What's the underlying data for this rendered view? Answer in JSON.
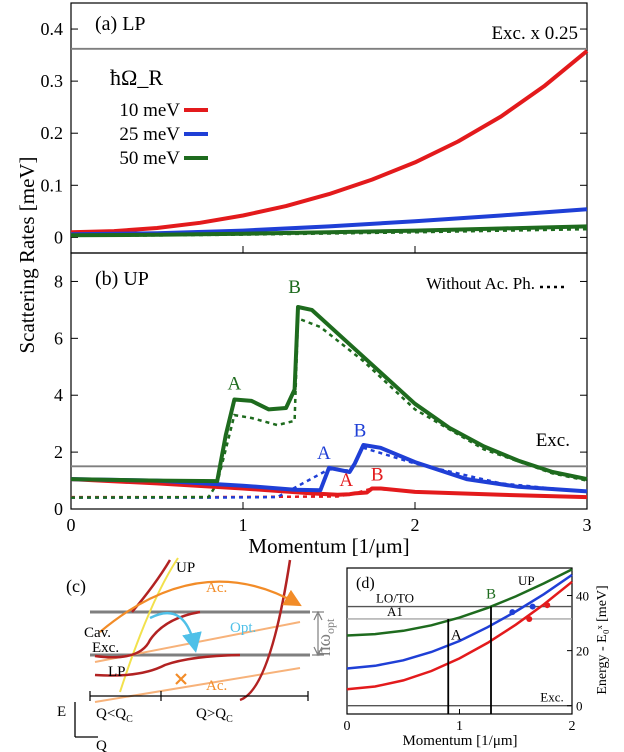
{
  "colors": {
    "red": "#e31a1c",
    "blue": "#1f3fd6",
    "green": "#1e6b1e",
    "gray": "#7f7f7f",
    "orange": "#f28c28",
    "orange_light": "#f7b27a",
    "cyan": "#4fc0e8",
    "yellow": "#f2e14c",
    "darkred": "#b22222"
  },
  "chart_data": [
    {
      "type": "line",
      "panel_label": "(a) LP",
      "ylabel": "Scattering Rates [meV]",
      "xlim": [
        0,
        3
      ],
      "ylim": [
        -0.03,
        0.45
      ],
      "yticks": [
        0,
        0.1,
        0.2,
        0.3,
        0.4
      ],
      "ytick_labels": [
        "0",
        "0.1",
        "0.2",
        "0.3",
        "0.4"
      ],
      "legend_title": "ħΩ_R",
      "reference_line": {
        "label": "Exc. x 0.25",
        "y": 0.362
      },
      "series": [
        {
          "name": "10 meV",
          "color": "red",
          "x": [
            0,
            0.25,
            0.5,
            0.75,
            1.0,
            1.25,
            1.5,
            1.75,
            2.0,
            2.25,
            2.5,
            2.75,
            3.0
          ],
          "y": [
            0.01,
            0.012,
            0.018,
            0.028,
            0.042,
            0.06,
            0.083,
            0.111,
            0.144,
            0.184,
            0.232,
            0.29,
            0.358
          ]
        },
        {
          "name": "25 meV",
          "color": "blue",
          "x": [
            0,
            0.5,
            1.0,
            1.5,
            2.0,
            2.5,
            3.0
          ],
          "y": [
            0.006,
            0.008,
            0.013,
            0.021,
            0.031,
            0.042,
            0.054
          ]
        },
        {
          "name": "50 meV",
          "color": "green",
          "x": [
            0,
            0.5,
            1.0,
            1.5,
            2.0,
            2.5,
            3.0
          ],
          "y": [
            0.004,
            0.005,
            0.007,
            0.01,
            0.013,
            0.017,
            0.021
          ]
        }
      ]
    },
    {
      "type": "line",
      "panel_label": "(b) UP",
      "xlabel": "Momentum [1/μm]",
      "xlim": [
        0,
        3
      ],
      "ylim": [
        0,
        9
      ],
      "xticks": [
        0,
        1,
        2,
        3
      ],
      "yticks": [
        0,
        2,
        4,
        6,
        8
      ],
      "legend_dashed_label": "Without Ac. Ph.",
      "reference_line": {
        "label": "Exc.",
        "y": 1.5
      },
      "series": [
        {
          "name": "10 meV",
          "color": "red",
          "x": [
            0,
            0.5,
            1.0,
            1.4,
            1.55,
            1.62,
            1.65,
            1.72,
            1.75,
            1.8,
            2.0,
            2.5,
            3.0
          ],
          "y": [
            1.05,
            0.9,
            0.72,
            0.55,
            0.5,
            0.52,
            0.55,
            0.58,
            0.72,
            0.72,
            0.6,
            0.5,
            0.42
          ]
        },
        {
          "name": "25 meV",
          "color": "blue",
          "x": [
            0,
            0.5,
            1.0,
            1.3,
            1.45,
            1.5,
            1.62,
            1.65,
            1.7,
            1.8,
            2.0,
            2.3,
            2.6,
            3.0
          ],
          "y": [
            1.05,
            1.0,
            0.82,
            0.68,
            0.66,
            1.45,
            1.3,
            1.6,
            2.25,
            2.15,
            1.65,
            1.05,
            0.78,
            0.62
          ]
        },
        {
          "name": "50 meV",
          "color": "green",
          "x": [
            0,
            0.5,
            0.85,
            0.9,
            0.95,
            1.05,
            1.15,
            1.25,
            1.3,
            1.32,
            1.4,
            1.6,
            1.8,
            2.0,
            2.2,
            2.4,
            2.6,
            2.8,
            3.0
          ],
          "y": [
            1.05,
            1.0,
            0.98,
            2.6,
            3.85,
            3.8,
            3.5,
            3.55,
            4.2,
            7.1,
            7.0,
            5.9,
            4.8,
            3.7,
            2.85,
            2.2,
            1.7,
            1.3,
            1.05
          ]
        }
      ],
      "dashed_series": [
        {
          "name": "10 meV",
          "color": "red",
          "x": [
            0,
            0.8,
            1.55,
            1.65,
            1.75,
            2.0,
            3.0
          ],
          "y": [
            0.42,
            0.42,
            0.44,
            0.55,
            0.72,
            0.6,
            0.42
          ]
        },
        {
          "name": "25 meV",
          "color": "blue",
          "x": [
            0,
            0.8,
            1.2,
            1.5,
            1.62,
            1.7,
            2.0,
            2.5,
            3.0
          ],
          "y": [
            0.4,
            0.4,
            0.42,
            1.4,
            1.35,
            2.15,
            1.6,
            0.9,
            0.6
          ]
        },
        {
          "name": "50 meV",
          "color": "green",
          "x": [
            0,
            0.8,
            0.85,
            0.95,
            1.05,
            1.2,
            1.3,
            1.32,
            1.45,
            1.7,
            2.0,
            2.4,
            2.8,
            3.0
          ],
          "y": [
            0.4,
            0.42,
            0.9,
            3.3,
            3.2,
            2.95,
            3.1,
            6.7,
            6.4,
            5.2,
            3.5,
            2.1,
            1.25,
            1.0
          ]
        }
      ],
      "annotations": [
        {
          "text": "A",
          "color": "green",
          "x": 0.95,
          "y": 4.2
        },
        {
          "text": "B",
          "color": "green",
          "x": 1.3,
          "y": 7.6
        },
        {
          "text": "A",
          "color": "blue",
          "x": 1.47,
          "y": 1.75
        },
        {
          "text": "B",
          "color": "blue",
          "x": 1.68,
          "y": 2.55
        },
        {
          "text": "A",
          "color": "red",
          "x": 1.6,
          "y": 0.8
        },
        {
          "text": "B",
          "color": "red",
          "x": 1.78,
          "y": 1.0
        }
      ]
    },
    {
      "type": "line",
      "panel_label": "(d)",
      "xlabel": "Momentum [1/μm]",
      "ylabel": "Energy - E₀ˣ [meV]",
      "xlim": [
        0,
        2
      ],
      "ylim": [
        -3,
        50
      ],
      "xticks": [
        0,
        1,
        2
      ],
      "yticks": [
        0,
        20,
        40
      ],
      "reference_lines": [
        {
          "label": "LO/TO",
          "y": 36
        },
        {
          "label": "A1",
          "y": 31.5
        },
        {
          "label": "Exc.",
          "y": 0
        }
      ],
      "curve_label": "UP",
      "series": [
        {
          "name": "50 meV",
          "color": "green",
          "x": [
            0,
            0.25,
            0.5,
            0.75,
            1.0,
            1.25,
            1.5,
            1.75,
            2.0
          ],
          "y": [
            25.5,
            26.0,
            27.2,
            29.2,
            32.0,
            35.5,
            39.7,
            44.4,
            49.5
          ]
        },
        {
          "name": "25 meV",
          "color": "blue",
          "x": [
            0,
            0.25,
            0.5,
            0.75,
            1.0,
            1.25,
            1.5,
            1.75,
            2.0
          ],
          "y": [
            13.5,
            14.5,
            16.5,
            19.5,
            23.5,
            28.5,
            34.2,
            40.5,
            47.5
          ]
        },
        {
          "name": "10 meV",
          "color": "red",
          "x": [
            0,
            0.25,
            0.5,
            0.75,
            1.0,
            1.25,
            1.5,
            1.75,
            2.0
          ],
          "y": [
            6.0,
            7.0,
            9.2,
            12.6,
            17.2,
            22.8,
            29.4,
            36.8,
            45.0
          ]
        }
      ],
      "vertical_markers": [
        {
          "label": "A",
          "x": 0.9
        },
        {
          "label": "B",
          "x": 1.28
        }
      ]
    }
  ],
  "schematic": {
    "panel_label": "(c)",
    "labels": {
      "up": "UP",
      "lp": "LP",
      "cav": "Cav.",
      "exc": "Exc.",
      "ac_top": "Ac.",
      "ac_bottom": "Ac.",
      "opt": "Opt.",
      "omega": "ħω",
      "omega_sub": "opt",
      "e_axis": "E",
      "q_axis": "Q",
      "left_region": "Q<Q",
      "left_region_sub": "C",
      "right_region": "Q>Q",
      "right_region_sub": "C"
    }
  }
}
